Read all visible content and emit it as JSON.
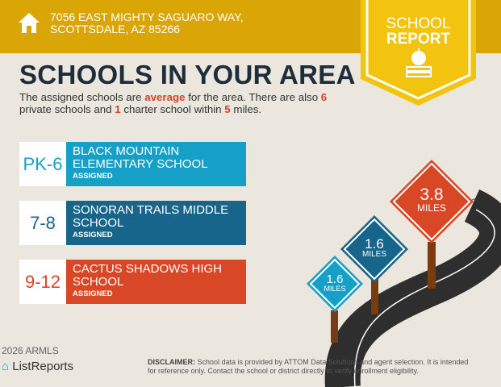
{
  "header": {
    "address": "7056 EAST MIGHTY SAGUARO WAY, SCOTTSDALE, AZ 85266",
    "icon": "home-icon"
  },
  "badge": {
    "line1": "SCHOOL",
    "line2": "REPORT",
    "icon": "apple-books-icon"
  },
  "title": "SCHOOLS IN YOUR AREA",
  "summary": {
    "p1": "The assigned schools are ",
    "rating": "average",
    "p2": " for the area. There are also ",
    "private_count": "6",
    "p3": " private schools and ",
    "charter_count": "1",
    "p4": " charter school within ",
    "miles": "5",
    "p5": " miles."
  },
  "schools": [
    {
      "grade": "PK-6",
      "name": "BLACK MOUNTAIN ELEMENTARY SCHOOL",
      "status": "ASSIGNED",
      "color": "#16a0c8",
      "distance": "1.6",
      "unit": "MILES"
    },
    {
      "grade": "7-8",
      "name": "SONORAN TRAILS MIDDLE SCHOOL",
      "status": "ASSIGNED",
      "color": "#17658a",
      "distance": "1.6",
      "unit": "MILES"
    },
    {
      "grade": "9-12",
      "name": "CACTUS SHADOWS HIGH SCHOOL",
      "status": "ASSIGNED",
      "color": "#d84726",
      "distance": "3.8",
      "unit": "MILES"
    }
  ],
  "footer": {
    "logo": "ListReports",
    "watermark": "2026 ARMLS",
    "disclaimer_label": "DISCLAIMER:",
    "disclaimer": " School data is provided by ATTOM Data Solutions and agent selection. It is intended for reference only. Contact the school or district directly to verify enrollment eligibility."
  }
}
